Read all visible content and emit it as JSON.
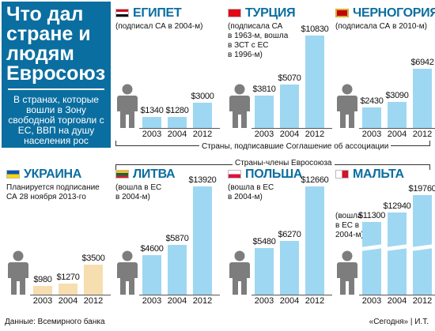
{
  "title": "Что дал стране и людям Евросоюз",
  "subtitle": "В странах, которые вошли в Зону свободной торговли с ЕС, ВВП на душу населения рос",
  "group_association": "Страны, подписавшие Соглашение об ассоциации",
  "group_eu": "Страны-члены Евросоюза",
  "source": "Данные: Всемирного банка",
  "credit": "«Сегодня» | И.Т.",
  "colors": {
    "title_bg": "#0b6ea0",
    "bar": "#9ed7f2",
    "bar_ukraine": "#f7deb0",
    "person": "#7d7d7d"
  },
  "icons": [
    "person-icon",
    "flag-icon"
  ],
  "chart_data": [
    {
      "type": "bar",
      "country": "ЕГИПЕТ",
      "note": "(подписал СА в 2004-м)",
      "categories": [
        "2003",
        "2004",
        "2012"
      ],
      "values": [
        1340,
        1280,
        3000
      ],
      "labels": [
        "$1340",
        "$1280",
        "$3000"
      ]
    },
    {
      "type": "bar",
      "country": "ТУРЦИЯ",
      "note": "(подписала СА в 1963-м, вошла в ЗСТ с ЕС в 1996-м)",
      "categories": [
        "2003",
        "2004",
        "2012"
      ],
      "values": [
        3810,
        5070,
        10830
      ],
      "labels": [
        "$3810",
        "$5070",
        "$10830"
      ]
    },
    {
      "type": "bar",
      "country": "ЧЕРНОГОРИЯ",
      "note": "(подписала СА в 2010-м)",
      "categories": [
        "2003",
        "2004",
        "2012"
      ],
      "values": [
        2430,
        3090,
        6942
      ],
      "labels": [
        "$2430",
        "$3090",
        "$6942"
      ]
    },
    {
      "type": "bar",
      "country": "УКРАИНА",
      "note": "Планируется подписание СА 28 ноября 2013-го",
      "categories": [
        "2003",
        "2004",
        "2012"
      ],
      "values": [
        980,
        1270,
        3500
      ],
      "labels": [
        "$980",
        "$1270",
        "$3500"
      ]
    },
    {
      "type": "bar",
      "country": "ЛИТВА",
      "note": "(вошла в ЕС в 2004-м)",
      "categories": [
        "2003",
        "2004",
        "2012"
      ],
      "values": [
        4600,
        5870,
        13920
      ],
      "labels": [
        "$4600",
        "$5870",
        "$13920"
      ]
    },
    {
      "type": "bar",
      "country": "ПОЛЬША",
      "note": "(вошла в ЕС в 2004-м)",
      "categories": [
        "2003",
        "2004",
        "2012"
      ],
      "values": [
        5480,
        6270,
        12660
      ],
      "labels": [
        "$5480",
        "$6270",
        "$12660"
      ]
    },
    {
      "type": "bar",
      "country": "МАЛЬТА",
      "note": "(вошла в ЕС в 2004-м)",
      "categories": [
        "2003",
        "2004",
        "2012"
      ],
      "values": [
        11300,
        12940,
        19760
      ],
      "labels": [
        "$11300",
        "$12940",
        "$19760"
      ],
      "axis_break": true
    }
  ]
}
